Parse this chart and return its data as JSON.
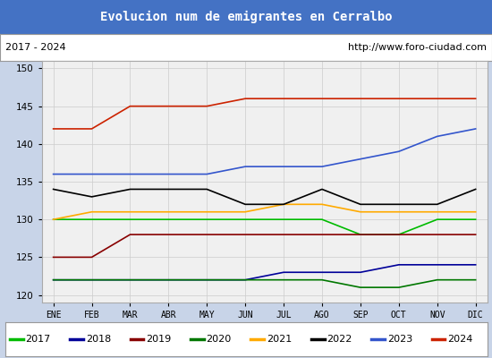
{
  "title": "Evolucion num de emigrantes en Cerralbo",
  "subtitle_left": "2017 - 2024",
  "subtitle_right": "http://www.foro-ciudad.com",
  "title_bg_color": "#4472c4",
  "title_text_color": "#ffffff",
  "months": [
    "ENE",
    "FEB",
    "MAR",
    "ABR",
    "MAY",
    "JUN",
    "JUL",
    "AGO",
    "SEP",
    "OCT",
    "NOV",
    "DIC"
  ],
  "ylim": [
    119,
    151
  ],
  "yticks": [
    120,
    125,
    130,
    135,
    140,
    145,
    150
  ],
  "series": {
    "2017": {
      "color": "#00bb00",
      "data": [
        130,
        130,
        130,
        130,
        130,
        130,
        130,
        130,
        128,
        128,
        130,
        130
      ]
    },
    "2018": {
      "color": "#000099",
      "data": [
        122,
        122,
        122,
        122,
        122,
        122,
        123,
        123,
        123,
        124,
        124,
        124
      ]
    },
    "2019": {
      "color": "#880000",
      "data": [
        125,
        125,
        128,
        128,
        128,
        128,
        128,
        128,
        128,
        128,
        128,
        128
      ]
    },
    "2020": {
      "color": "#007700",
      "data": [
        122,
        122,
        122,
        122,
        122,
        122,
        122,
        122,
        121,
        121,
        122,
        122
      ]
    },
    "2021": {
      "color": "#ffaa00",
      "data": [
        130,
        131,
        131,
        131,
        131,
        131,
        132,
        132,
        131,
        131,
        131,
        131
      ]
    },
    "2022": {
      "color": "#000000",
      "data": [
        134,
        133,
        134,
        134,
        134,
        132,
        132,
        134,
        132,
        132,
        132,
        134
      ]
    },
    "2023": {
      "color": "#3355cc",
      "data": [
        136,
        136,
        136,
        136,
        136,
        137,
        137,
        137,
        138,
        139,
        141,
        142
      ]
    },
    "2024": {
      "color": "#cc2200",
      "data": [
        142,
        142,
        145,
        145,
        145,
        146,
        146,
        146,
        146,
        146,
        146,
        146
      ]
    }
  }
}
